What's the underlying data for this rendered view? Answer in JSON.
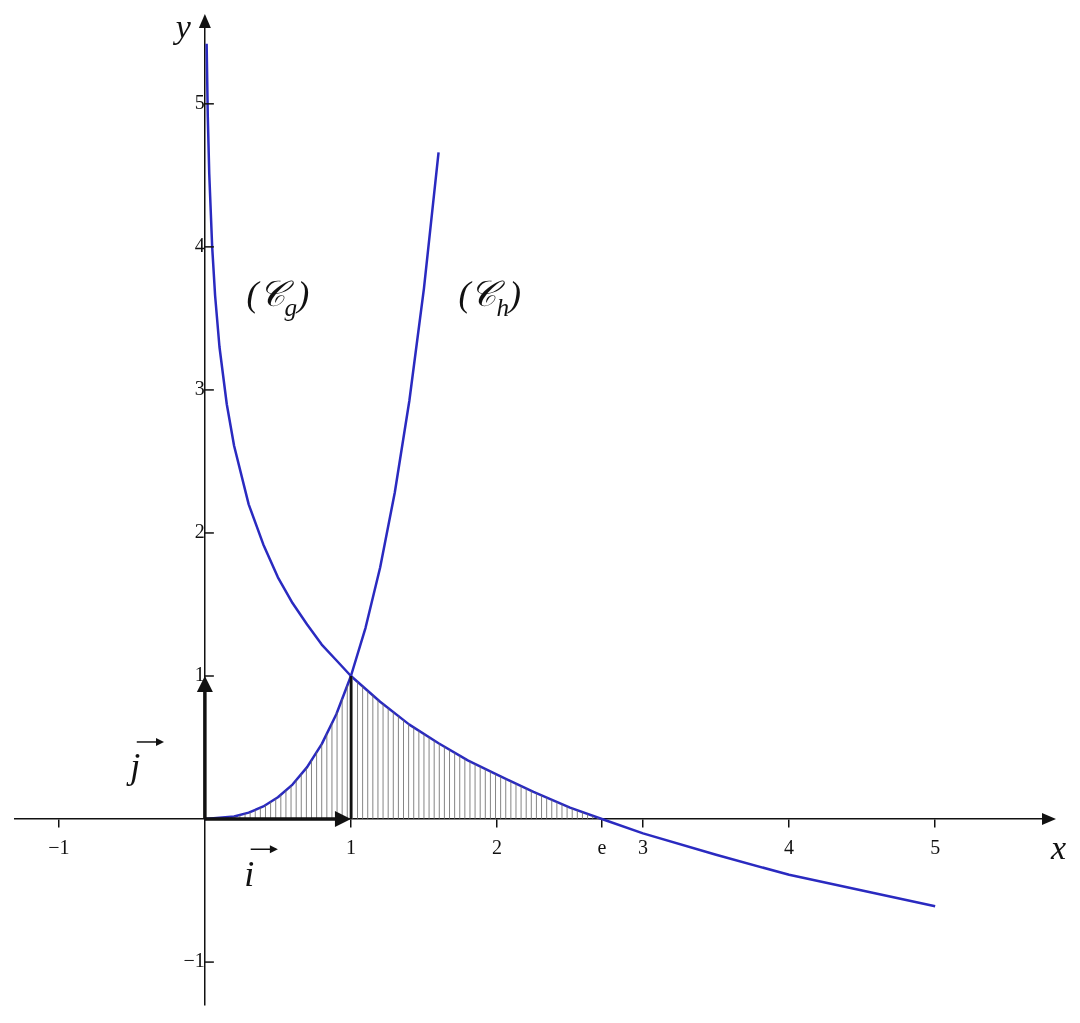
{
  "chart_data": {
    "type": "line",
    "xlabel": "x",
    "ylabel": "y",
    "xlim": [
      -1.3,
      5.8
    ],
    "ylim": [
      -1.3,
      5.6
    ],
    "xticks": [
      -1,
      1,
      2,
      {
        "value": 2.718,
        "label": "e"
      },
      3,
      4,
      5
    ],
    "yticks": [
      -1,
      1,
      2,
      3,
      4,
      5
    ],
    "grid": false,
    "legend": false,
    "marker": "none",
    "series": [
      {
        "color": "#2a2ac0",
        "x": [
          0.012,
          0.02,
          0.03,
          0.05,
          0.07,
          0.1,
          0.15,
          0.2,
          0.3,
          0.4,
          0.5,
          0.6,
          0.7,
          0.8,
          0.9,
          1,
          1.2,
          1.4,
          1.6,
          1.8,
          2,
          2.25,
          2.5,
          2.718,
          3,
          3.5,
          4,
          4.5,
          5
        ],
        "values": [
          5.42,
          4.91,
          4.51,
          4.0,
          3.66,
          3.3,
          2.9,
          2.61,
          2.2,
          1.92,
          1.69,
          1.51,
          1.36,
          1.22,
          1.11,
          1,
          0.82,
          0.66,
          0.53,
          0.41,
          0.31,
          0.19,
          0.08,
          0,
          -0.1,
          -0.25,
          -0.39,
          -0.5,
          -0.61
        ]
      },
      {
        "color": "#2a2ac0",
        "x": [
          0,
          0.2,
          0.3,
          0.4,
          0.5,
          0.6,
          0.7,
          0.8,
          0.9,
          1,
          1.1,
          1.2,
          1.3,
          1.4,
          1.5,
          1.6
        ],
        "values": [
          0,
          0.018,
          0.045,
          0.088,
          0.152,
          0.241,
          0.363,
          0.524,
          0.733,
          1,
          1.337,
          1.759,
          2.281,
          2.924,
          3.71,
          4.66
        ]
      }
    ],
    "annotations": [
      "(𝒞$_{g}$)",
      "(𝒞$_{h}$)",
      "i⃗",
      "j⃗"
    ]
  }
}
